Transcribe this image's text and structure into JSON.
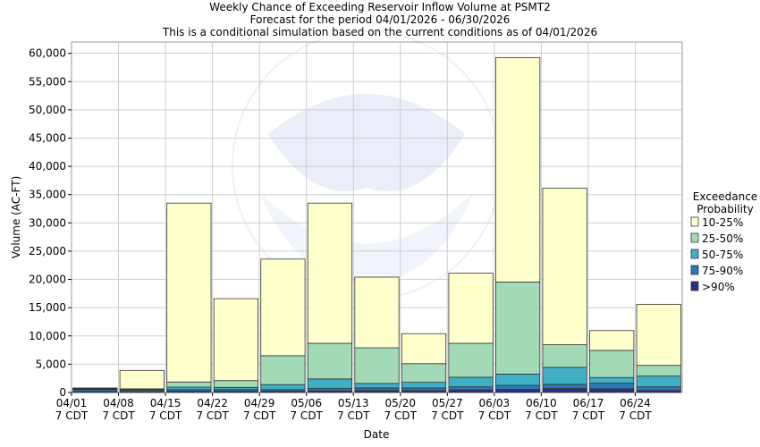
{
  "chart_data": {
    "type": "bar",
    "stacked": true,
    "title": [
      "Weekly Chance of Exceeding Reservoir Inflow Volume at PSMT2",
      "Forecast for the period 04/01/2026 - 06/30/2026",
      "This is a conditional simulation based on the current conditions as of 04/01/2026"
    ],
    "xlabel": "Date",
    "ylabel": "Volume (AC-FT)",
    "ylim": [
      0,
      62000
    ],
    "yticks": [
      0,
      5000,
      10000,
      15000,
      20000,
      25000,
      30000,
      35000,
      40000,
      45000,
      50000,
      55000,
      60000
    ],
    "ytick_labels": [
      "0",
      "5,000",
      "10,000",
      "15,000",
      "20,000",
      "25,000",
      "30,000",
      "35,000",
      "40,000",
      "45,000",
      "50,000",
      "55,000",
      "60,000"
    ],
    "categories": [
      "04/01",
      "04/08",
      "04/15",
      "04/22",
      "04/29",
      "05/06",
      "05/13",
      "05/20",
      "05/27",
      "06/03",
      "06/10",
      "06/17",
      "06/24"
    ],
    "category_sub": "7 CDT",
    "grid": true,
    "legend": {
      "title": [
        "Exceedance",
        "Probability"
      ],
      "placement": "right"
    },
    "series": [
      {
        "name": ">90%",
        "color": "#2b2f86",
        "values": [
          150,
          100,
          200,
          200,
          200,
          300,
          350,
          350,
          450,
          550,
          700,
          650,
          350
        ]
      },
      {
        "name": "75-90%",
        "color": "#2a7ab8",
        "values": [
          350,
          250,
          300,
          300,
          300,
          400,
          450,
          450,
          550,
          700,
          750,
          1000,
          650
        ]
      },
      {
        "name": "50-75%",
        "color": "#3fafc4",
        "values": [
          100,
          150,
          450,
          400,
          900,
          1700,
          800,
          1000,
          1700,
          2000,
          3000,
          1000,
          1900
        ]
      },
      {
        "name": "25-50%",
        "color": "#a2dab8",
        "values": [
          100,
          150,
          900,
          1200,
          5100,
          6300,
          6300,
          3300,
          6000,
          16300,
          4000,
          4800,
          1900
        ]
      },
      {
        "name": "10-25%",
        "color": "#ffffcc",
        "values": [
          100,
          3250,
          31650,
          14500,
          17100,
          24800,
          12500,
          5300,
          12400,
          39700,
          27700,
          3500,
          10800
        ]
      }
    ]
  }
}
